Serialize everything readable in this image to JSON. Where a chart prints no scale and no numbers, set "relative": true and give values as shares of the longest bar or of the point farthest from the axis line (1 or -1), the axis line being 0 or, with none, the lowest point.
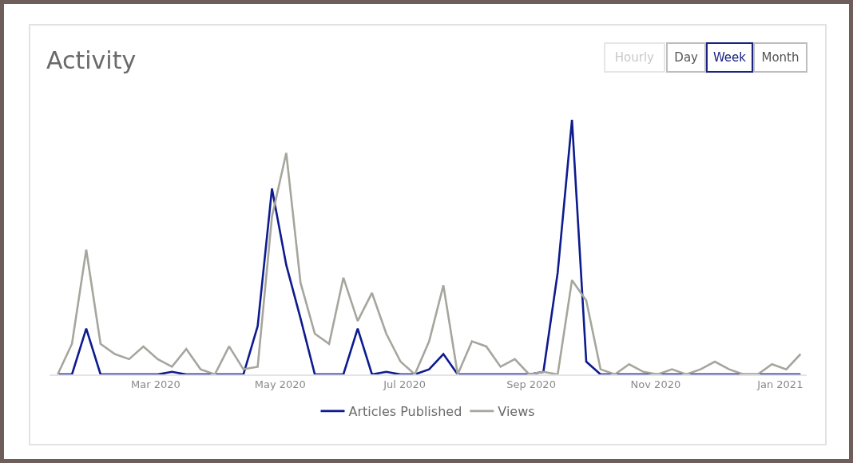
{
  "chart_data": {
    "type": "line",
    "title": "Activity",
    "annotations": [
      "Hourly",
      "Day",
      "Week",
      "Month"
    ],
    "x": [
      "2020-01-13",
      "2020-01-20",
      "2020-01-27",
      "2020-02-03",
      "2020-02-10",
      "2020-02-17",
      "2020-02-24",
      "2020-03-02",
      "2020-03-09",
      "2020-03-16",
      "2020-03-23",
      "2020-03-30",
      "2020-04-06",
      "2020-04-13",
      "2020-04-20",
      "2020-04-27",
      "2020-05-04",
      "2020-05-11",
      "2020-05-18",
      "2020-05-25",
      "2020-06-01",
      "2020-06-08",
      "2020-06-15",
      "2020-06-22",
      "2020-06-29",
      "2020-07-06",
      "2020-07-13",
      "2020-07-20",
      "2020-07-27",
      "2020-08-03",
      "2020-08-10",
      "2020-08-17",
      "2020-08-24",
      "2020-08-31",
      "2020-09-07",
      "2020-09-14",
      "2020-09-21",
      "2020-09-28",
      "2020-10-05",
      "2020-10-12",
      "2020-10-19",
      "2020-10-26",
      "2020-11-02",
      "2020-11-09",
      "2020-11-16",
      "2020-11-23",
      "2020-11-30",
      "2020-12-07",
      "2020-12-14",
      "2020-12-21",
      "2020-12-28",
      "2021-01-04",
      "2021-01-11"
    ],
    "xlim": [
      "2020-01-09",
      "2021-01-14"
    ],
    "xticks": [
      {
        "value": "2020-03-01",
        "label": "Mar 2020"
      },
      {
        "value": "2020-05-01",
        "label": "May 2020"
      },
      {
        "value": "2020-07-01",
        "label": "Jul 2020"
      },
      {
        "value": "2020-09-01",
        "label": "Sep 2020"
      },
      {
        "value": "2020-11-01",
        "label": "Nov 2020"
      },
      {
        "value": "2021-01-01",
        "label": "Jan 2021"
      }
    ],
    "relative": true,
    "series": [
      {
        "name": "Articles Published",
        "color": "#0d1b8e",
        "values": [
          0,
          0,
          0.18,
          0,
          0,
          0,
          0,
          0,
          0.01,
          0,
          0,
          0,
          0,
          0,
          0.19,
          0.73,
          0.43,
          0.22,
          0,
          0,
          0,
          0.18,
          0,
          0.01,
          0,
          0,
          0.02,
          0.08,
          0,
          0,
          0,
          0,
          0,
          0,
          0.01,
          0.4,
          1,
          0.05,
          0,
          0,
          0,
          0,
          0,
          0,
          0,
          0,
          0,
          0,
          0,
          0,
          0,
          0,
          0
        ]
      },
      {
        "name": "Views",
        "color": "#a6a69e",
        "values": [
          0,
          0.12,
          0.49,
          0.12,
          0.08,
          0.06,
          0.11,
          0.06,
          0.03,
          0.1,
          0.02,
          0,
          0.11,
          0.02,
          0.03,
          0.62,
          0.87,
          0.36,
          0.16,
          0.12,
          0.38,
          0.21,
          0.32,
          0.16,
          0.05,
          0,
          0.13,
          0.35,
          0,
          0.13,
          0.11,
          0.03,
          0.06,
          0,
          0.01,
          0,
          0.37,
          0.29,
          0.02,
          0,
          0.04,
          0.01,
          0,
          0.02,
          0,
          0.02,
          0.05,
          0.02,
          0,
          0,
          0.04,
          0.02,
          0.08
        ]
      }
    ],
    "legend": "bottom"
  }
}
